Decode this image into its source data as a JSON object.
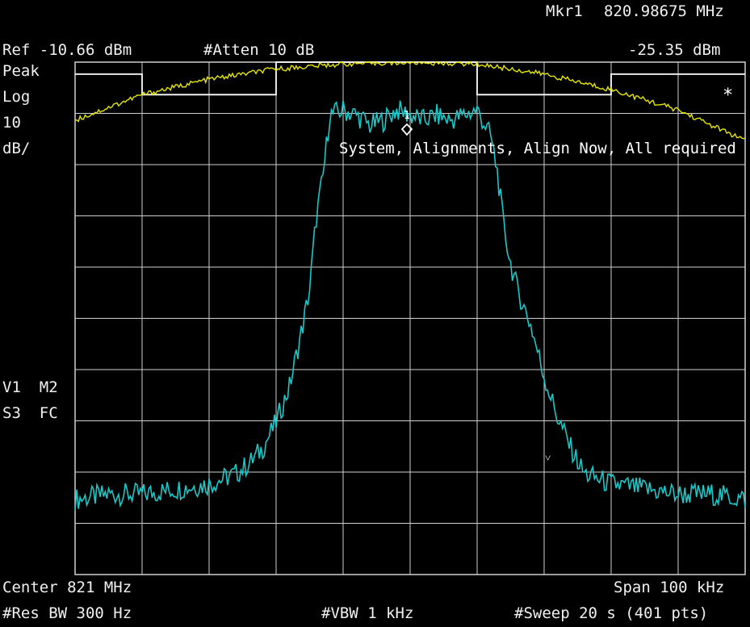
{
  "header": {
    "marker_label": "Mkr1",
    "marker_freq": "820.98675 MHz",
    "marker_level": "-25.35 dBm",
    "ref_level": "Ref -10.66 dBm",
    "attenuation": "#Atten 10 dB"
  },
  "left_panel": {
    "detector": "Peak",
    "scale_type": "Log",
    "scale_value": "10",
    "scale_unit": "dB/",
    "flags_line1": "V1  M2",
    "flags_line2": "S3  FC"
  },
  "message": "System, Alignments, Align Now, All required",
  "marker_number": "1",
  "limit_symbol": "*",
  "footer": {
    "center": "Center 821 MHz",
    "span": "Span 100 kHz",
    "res_bw": "#Res BW 300 Hz",
    "vbw": "#VBW 1 kHz",
    "sweep": "#Sweep 20 s (401 pts)"
  },
  "colors": {
    "trace": "#19c8c8",
    "yellow_trace": "#e6e600",
    "limit_line": "#ffffff",
    "grid": "#d0d0d0",
    "background": "#000000"
  },
  "chart_data": {
    "type": "line",
    "x_center_mhz": 821,
    "x_span_khz": 100,
    "ref_level_dbm": -10.66,
    "scale_db_per_div": 10,
    "grid": true,
    "series": [
      {
        "name": "",
        "role": "cyan-trace",
        "freq_offset_khz": [
          -50,
          -45,
          -40,
          -35,
          -30,
          -26,
          -24,
          -22,
          -20,
          -18,
          -16,
          -15,
          -14,
          -13,
          -12,
          -10,
          -8,
          -6,
          -4,
          -2,
          0,
          2,
          4,
          6,
          8,
          10,
          12,
          13,
          14,
          15,
          16,
          18,
          20,
          22,
          24,
          26,
          30,
          35,
          40,
          45,
          50
        ],
        "level_dbm": [
          -96,
          -95,
          -95,
          -94,
          -93,
          -91,
          -89,
          -86,
          -81,
          -74,
          -62,
          -55,
          -41,
          -33,
          -21,
          -20,
          -21,
          -23,
          -22,
          -20,
          -21,
          -22,
          -21,
          -22,
          -21,
          -20,
          -25,
          -32,
          -43,
          -50,
          -55,
          -62,
          -72,
          -80,
          -86,
          -91,
          -93,
          -94,
          -95,
          -95,
          -96
        ]
      },
      {
        "name": "",
        "role": "yellow-trace",
        "freq_offset_khz": [
          -50,
          -40,
          -30,
          -20,
          -10,
          0,
          10,
          20,
          30,
          40,
          50
        ],
        "level_dbm": [
          -22,
          -17,
          -14,
          -12,
          -11,
          -10.7,
          -11,
          -13,
          -16,
          -20,
          -26
        ]
      },
      {
        "name": "",
        "role": "limit-mask",
        "freq_offset_khz": [
          -50,
          -40,
          -40,
          -20,
          -20,
          10,
          10,
          30,
          30,
          40,
          40,
          50
        ],
        "level_dbm": [
          -13,
          -13,
          -17,
          -17,
          -10.66,
          -10.66,
          -17,
          -17,
          -13,
          -13,
          -13,
          -13
        ]
      }
    ],
    "marker": {
      "freq_mhz": 820.98675,
      "level_dbm": -25.35
    }
  }
}
